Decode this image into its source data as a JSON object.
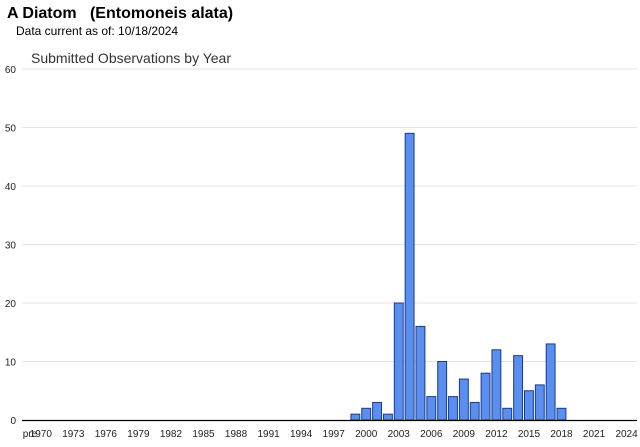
{
  "header": {
    "title": "A Diatom   (Entomoneis alata)",
    "data_current": "Data current as of: 10/18/2024"
  },
  "colors": {
    "bar_fill": "#5a8ff0",
    "bar_stroke": "#1a3a8c",
    "grid": "#e4e4e4",
    "axis": "#000000",
    "text": "#222222"
  },
  "chart_data": {
    "type": "bar",
    "title": "Submitted Observations by Year",
    "xlabel": "",
    "ylabel": "",
    "ylim": [
      0,
      60
    ],
    "yticks": [
      0,
      10,
      20,
      30,
      40,
      50,
      60
    ],
    "grid": true,
    "x_tick_labels": [
      "pre",
      "1970",
      "1973",
      "1976",
      "1979",
      "1982",
      "1985",
      "1988",
      "1991",
      "1994",
      "1997",
      "2000",
      "2003",
      "2006",
      "2009",
      "2012",
      "2015",
      "2018",
      "2021",
      "2024"
    ],
    "categories": [
      "pre",
      "1970",
      "1971",
      "1972",
      "1973",
      "1974",
      "1975",
      "1976",
      "1977",
      "1978",
      "1979",
      "1980",
      "1981",
      "1982",
      "1983",
      "1984",
      "1985",
      "1986",
      "1987",
      "1988",
      "1989",
      "1990",
      "1991",
      "1992",
      "1993",
      "1994",
      "1995",
      "1996",
      "1997",
      "1998",
      "1999",
      "2000",
      "2001",
      "2002",
      "2003",
      "2004",
      "2005",
      "2006",
      "2007",
      "2008",
      "2009",
      "2010",
      "2011",
      "2012",
      "2013",
      "2014",
      "2015",
      "2016",
      "2017",
      "2018",
      "2019",
      "2020",
      "2021",
      "2022",
      "2023",
      "2024"
    ],
    "values": [
      0,
      0,
      0,
      0,
      0,
      0,
      0,
      0,
      0,
      0,
      0,
      0,
      0,
      0,
      0,
      0,
      0,
      0,
      0,
      0,
      0,
      0,
      0,
      0,
      0,
      0,
      0,
      0,
      0,
      0,
      1,
      2,
      3,
      1,
      20,
      49,
      16,
      4,
      10,
      4,
      7,
      3,
      8,
      12,
      2,
      11,
      5,
      6,
      13,
      2,
      0,
      0,
      0,
      0,
      0,
      0
    ]
  }
}
